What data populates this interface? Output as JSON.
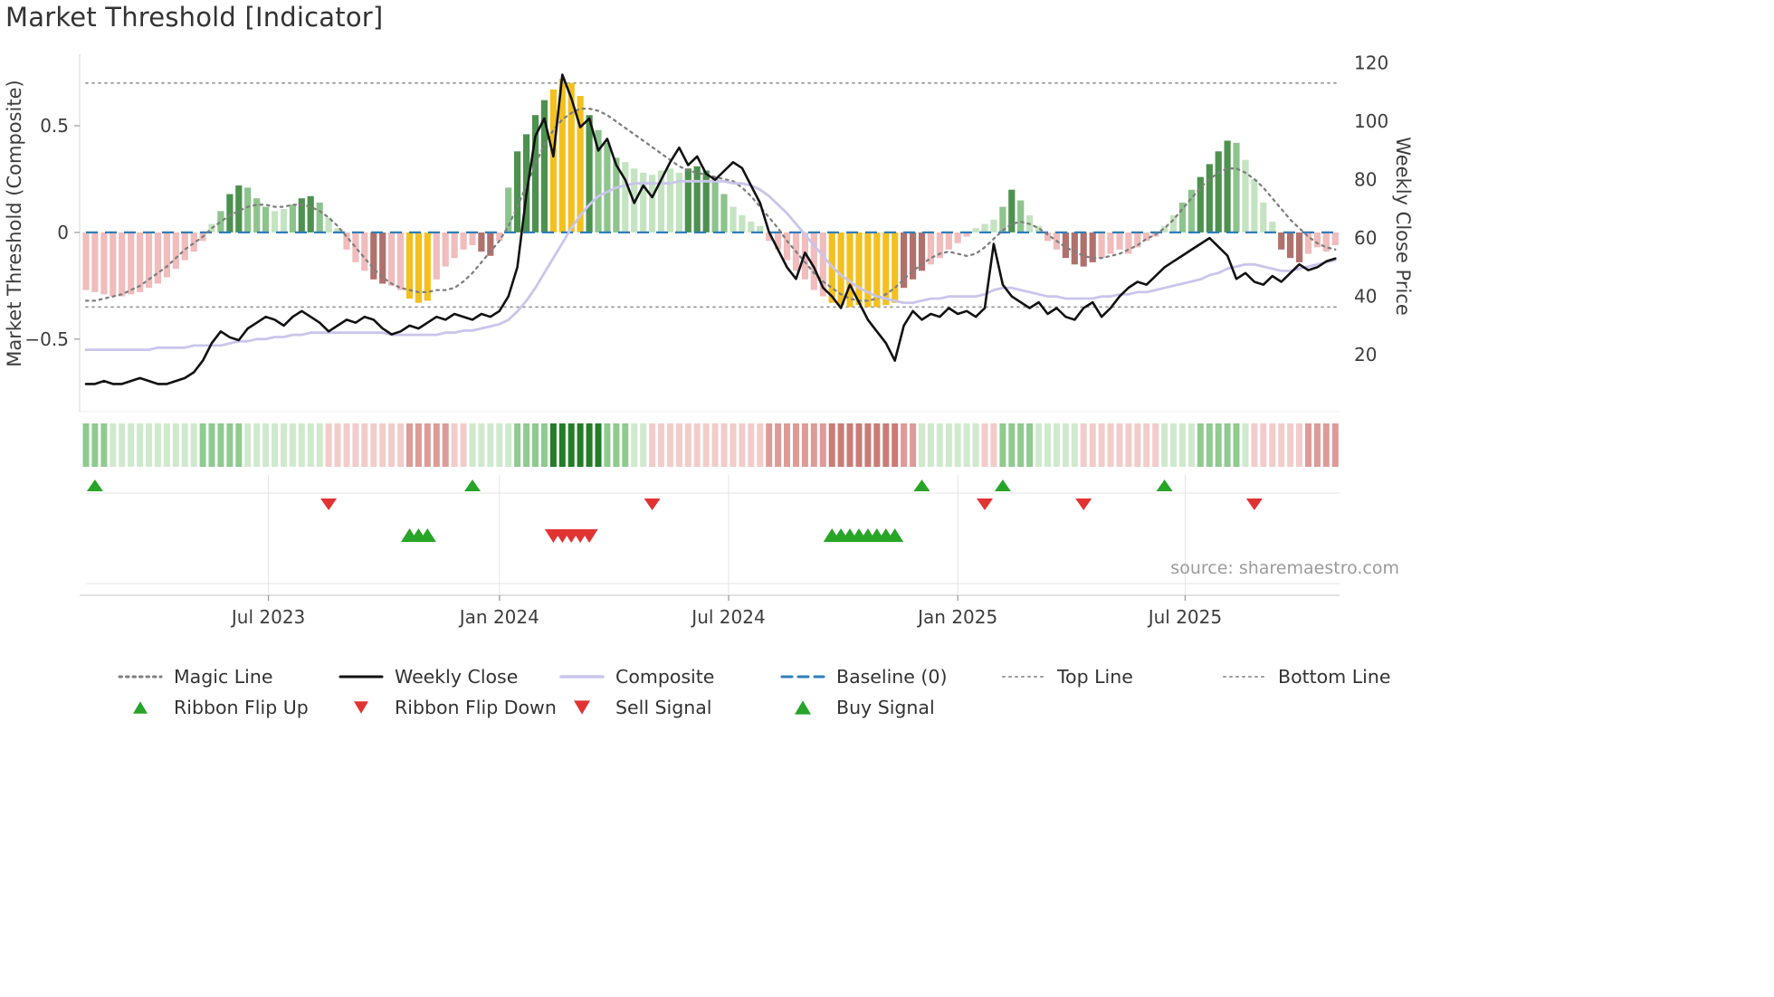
{
  "title": "Market Threshold [Indicator]",
  "source_text": "source: sharemaestro.com",
  "axes": {
    "left_label": "Market Threshold (Composite)",
    "right_label": "Weekly Close Price"
  },
  "colors": {
    "bar_palette": {
      "p": "#f0bcbc",
      "d": "#b0716d",
      "y": "#f3c01f",
      "g1": "#c4e4c1",
      "g2": "#8dc48d",
      "g3": "#4d914f"
    },
    "ribbon_palette": {
      "G1": "#cfe9cd",
      "G2": "#8fca8f",
      "G3": "#237d27",
      "R1": "#f2ccca",
      "R2": "#dd9b97",
      "R3": "#c97c76"
    },
    "lines": {
      "weekly_close": "#111111",
      "magic_line": "#7f7f7f",
      "composite": "#c9c5ec",
      "baseline": "#2e7ebb",
      "reference": "#9a9a9a"
    },
    "markers": {
      "up": "#28a428",
      "down": "#e23333"
    },
    "text": {
      "primary": "#333333",
      "ticks": "#3d3d3d",
      "source": "#9b9b9b"
    }
  },
  "legend": {
    "row1": [
      {
        "label": "Magic Line",
        "swatch": "magic"
      },
      {
        "label": "Weekly Close",
        "swatch": "close"
      },
      {
        "label": "Composite",
        "swatch": "composite"
      },
      {
        "label": "Baseline (0)",
        "swatch": "baseline"
      },
      {
        "label": "Top Line",
        "swatch": "refline"
      },
      {
        "label": "Bottom Line",
        "swatch": "refline"
      }
    ],
    "row2": [
      {
        "label": "Ribbon Flip Up",
        "swatch": "tri-up"
      },
      {
        "label": "Ribbon Flip Down",
        "swatch": "tri-down"
      },
      {
        "label": "Sell Signal",
        "swatch": "tri-down-big"
      },
      {
        "label": "Buy Signal",
        "swatch": "tri-up-big"
      }
    ]
  },
  "chart_data": {
    "type": "mixed-bar-line",
    "title": "Market Threshold [Indicator]",
    "frequency": "weekly",
    "points": 140,
    "legend_position": "bottom",
    "grid": "lower-panel-only",
    "left_axis": {
      "range": [
        -0.84,
        0.835
      ],
      "ticks": [
        {
          "value": 0.5,
          "label": "0.5"
        },
        {
          "value": 0,
          "label": "0"
        },
        {
          "value": -0.5,
          "label": "−0.5"
        }
      ]
    },
    "right_axis": {
      "range": [
        0.5,
        123
      ],
      "ticks": [
        {
          "value": 120,
          "label": "120"
        },
        {
          "value": 100,
          "label": "100"
        },
        {
          "value": 80,
          "label": "80"
        },
        {
          "value": 60,
          "label": "60"
        },
        {
          "value": 40,
          "label": "40"
        },
        {
          "value": 20,
          "label": "20"
        }
      ]
    },
    "x_ticks": [
      {
        "pos": 20.3,
        "label": "Jul 2023"
      },
      {
        "pos": 46,
        "label": "Jan 2024"
      },
      {
        "pos": 71.5,
        "label": "Jul 2024"
      },
      {
        "pos": 97,
        "label": "Jan 2025"
      },
      {
        "pos": 122.3,
        "label": "Jul 2025"
      }
    ],
    "reference_lines": {
      "baseline": 0,
      "top_line": 0.7,
      "bottom_line": -0.35
    },
    "threshold_bars": {
      "values": [
        -0.27,
        -0.28,
        -0.29,
        -0.3,
        -0.3,
        -0.29,
        -0.28,
        -0.26,
        -0.24,
        -0.21,
        -0.17,
        -0.13,
        -0.09,
        -0.04,
        0.04,
        0.1,
        0.18,
        0.22,
        0.21,
        0.16,
        0.12,
        0.1,
        0.11,
        0.13,
        0.16,
        0.17,
        0.14,
        0.07,
        0.02,
        -0.08,
        -0.14,
        -0.18,
        -0.22,
        -0.24,
        -0.25,
        -0.27,
        -0.31,
        -0.33,
        -0.32,
        -0.22,
        -0.16,
        -0.12,
        -0.08,
        -0.06,
        -0.09,
        -0.11,
        -0.04,
        0.21,
        0.38,
        0.46,
        0.55,
        0.62,
        0.67,
        0.72,
        0.7,
        0.64,
        0.55,
        0.48,
        0.42,
        0.35,
        0.33,
        0.3,
        0.28,
        0.27,
        0.29,
        0.3,
        0.28,
        0.3,
        0.31,
        0.29,
        0.25,
        0.18,
        0.12,
        0.08,
        0.05,
        0.03,
        -0.04,
        -0.08,
        -0.13,
        -0.18,
        -0.22,
        -0.27,
        -0.3,
        -0.33,
        -0.34,
        -0.35,
        -0.34,
        -0.35,
        -0.35,
        -0.34,
        -0.33,
        -0.26,
        -0.22,
        -0.18,
        -0.15,
        -0.12,
        -0.08,
        -0.05,
        -0.02,
        0.02,
        0.04,
        0.06,
        0.12,
        0.2,
        0.15,
        0.08,
        0.03,
        -0.04,
        -0.08,
        -0.12,
        -0.15,
        -0.16,
        -0.14,
        -0.12,
        -0.1,
        -0.08,
        -0.1,
        -0.07,
        -0.04,
        -0.02,
        0.03,
        0.08,
        0.14,
        0.2,
        0.26,
        0.32,
        0.38,
        0.43,
        0.42,
        0.34,
        0.25,
        0.14,
        0.05,
        -0.08,
        -0.12,
        -0.14,
        -0.1,
        -0.07,
        -0.09,
        -0.06
      ],
      "colors": [
        "p",
        "p",
        "p",
        "p",
        "p",
        "p",
        "p",
        "p",
        "p",
        "p",
        "p",
        "p",
        "p",
        "p",
        "g1",
        "g2",
        "g3",
        "g3",
        "g2",
        "g2",
        "g2",
        "g1",
        "g1",
        "g2",
        "g3",
        "g3",
        "g2",
        "g1",
        "g1",
        "p",
        "p",
        "p",
        "d",
        "d",
        "p",
        "p",
        "y",
        "y",
        "y",
        "p",
        "p",
        "p",
        "p",
        "p",
        "d",
        "d",
        "p",
        "g2",
        "g3",
        "g3",
        "g3",
        "g3",
        "y",
        "y",
        "y",
        "y",
        "g3",
        "g2",
        "g2",
        "g2",
        "g1",
        "g1",
        "g1",
        "g1",
        "g1",
        "g1",
        "g1",
        "g3",
        "g3",
        "g3",
        "g2",
        "g2",
        "g1",
        "g1",
        "g1",
        "g1",
        "p",
        "p",
        "p",
        "p",
        "p",
        "p",
        "p",
        "y",
        "y",
        "y",
        "y",
        "y",
        "y",
        "y",
        "y",
        "d",
        "d",
        "d",
        "p",
        "p",
        "p",
        "p",
        "p",
        "g1",
        "g1",
        "g1",
        "g2",
        "g3",
        "g2",
        "g1",
        "g1",
        "p",
        "p",
        "d",
        "d",
        "d",
        "d",
        "p",
        "p",
        "p",
        "p",
        "p",
        "p",
        "p",
        "g1",
        "g1",
        "g2",
        "g2",
        "g3",
        "g3",
        "g3",
        "g3",
        "g2",
        "g1",
        "g1",
        "g1",
        "g1",
        "d",
        "d",
        "d",
        "p",
        "p",
        "p",
        "p"
      ]
    },
    "series": [
      {
        "id": "magic",
        "name": "Magic Line",
        "axis": "left",
        "values": [
          -0.32,
          -0.32,
          -0.31,
          -0.3,
          -0.29,
          -0.27,
          -0.25,
          -0.22,
          -0.19,
          -0.16,
          -0.12,
          -0.08,
          -0.05,
          -0.02,
          0.02,
          0.05,
          0.08,
          0.1,
          0.12,
          0.13,
          0.13,
          0.12,
          0.12,
          0.13,
          0.13,
          0.12,
          0.1,
          0.07,
          0.03,
          -0.02,
          -0.07,
          -0.12,
          -0.17,
          -0.21,
          -0.24,
          -0.26,
          -0.27,
          -0.28,
          -0.28,
          -0.27,
          -0.27,
          -0.26,
          -0.23,
          -0.19,
          -0.14,
          -0.09,
          -0.04,
          0.03,
          0.12,
          0.22,
          0.32,
          0.41,
          0.48,
          0.53,
          0.56,
          0.58,
          0.58,
          0.57,
          0.55,
          0.52,
          0.49,
          0.46,
          0.43,
          0.4,
          0.37,
          0.34,
          0.31,
          0.29,
          0.28,
          0.27,
          0.26,
          0.25,
          0.24,
          0.21,
          0.17,
          0.12,
          0.07,
          0.02,
          -0.04,
          -0.09,
          -0.14,
          -0.19,
          -0.23,
          -0.26,
          -0.29,
          -0.31,
          -0.32,
          -0.32,
          -0.31,
          -0.29,
          -0.26,
          -0.22,
          -0.18,
          -0.15,
          -0.12,
          -0.1,
          -0.09,
          -0.1,
          -0.11,
          -0.1,
          -0.07,
          -0.03,
          0.01,
          0.04,
          0.05,
          0.04,
          0.02,
          -0.01,
          -0.04,
          -0.07,
          -0.09,
          -0.11,
          -0.12,
          -0.12,
          -0.11,
          -0.1,
          -0.08,
          -0.06,
          -0.03,
          -0.01,
          0.02,
          0.06,
          0.11,
          0.16,
          0.21,
          0.25,
          0.28,
          0.3,
          0.3,
          0.28,
          0.25,
          0.21,
          0.16,
          0.11,
          0.06,
          0.02,
          -0.02,
          -0.05,
          -0.07,
          -0.08
        ]
      },
      {
        "id": "composite",
        "name": "Composite",
        "axis": "left",
        "values": [
          -0.55,
          -0.55,
          -0.55,
          -0.55,
          -0.55,
          -0.55,
          -0.55,
          -0.55,
          -0.54,
          -0.54,
          -0.54,
          -0.54,
          -0.53,
          -0.53,
          -0.53,
          -0.53,
          -0.52,
          -0.51,
          -0.51,
          -0.5,
          -0.5,
          -0.49,
          -0.49,
          -0.48,
          -0.48,
          -0.47,
          -0.47,
          -0.47,
          -0.47,
          -0.47,
          -0.47,
          -0.47,
          -0.47,
          -0.47,
          -0.48,
          -0.48,
          -0.48,
          -0.48,
          -0.48,
          -0.48,
          -0.47,
          -0.47,
          -0.46,
          -0.46,
          -0.45,
          -0.44,
          -0.43,
          -0.41,
          -0.37,
          -0.32,
          -0.26,
          -0.19,
          -0.12,
          -0.05,
          0.02,
          0.08,
          0.13,
          0.17,
          0.19,
          0.21,
          0.22,
          0.23,
          0.23,
          0.23,
          0.23,
          0.23,
          0.24,
          0.24,
          0.24,
          0.24,
          0.24,
          0.24,
          0.23,
          0.23,
          0.22,
          0.2,
          0.17,
          0.13,
          0.09,
          0.04,
          -0.01,
          -0.06,
          -0.11,
          -0.16,
          -0.2,
          -0.23,
          -0.26,
          -0.28,
          -0.3,
          -0.31,
          -0.32,
          -0.33,
          -0.33,
          -0.32,
          -0.31,
          -0.31,
          -0.3,
          -0.3,
          -0.3,
          -0.3,
          -0.29,
          -0.27,
          -0.26,
          -0.26,
          -0.27,
          -0.28,
          -0.29,
          -0.3,
          -0.3,
          -0.31,
          -0.31,
          -0.31,
          -0.31,
          -0.3,
          -0.3,
          -0.29,
          -0.29,
          -0.28,
          -0.28,
          -0.27,
          -0.26,
          -0.25,
          -0.24,
          -0.23,
          -0.22,
          -0.2,
          -0.19,
          -0.17,
          -0.16,
          -0.15,
          -0.15,
          -0.16,
          -0.17,
          -0.18,
          -0.18,
          -0.17,
          -0.16,
          -0.15,
          -0.14,
          -0.13
        ]
      },
      {
        "id": "close",
        "name": "Weekly Close",
        "axis": "right",
        "values": [
          10,
          10,
          11,
          10,
          10,
          11,
          12,
          11,
          10,
          10,
          11,
          12,
          14,
          18,
          24,
          28,
          26,
          25,
          29,
          31,
          33,
          32,
          30,
          33,
          35,
          33,
          31,
          28,
          30,
          32,
          31,
          33,
          32,
          29,
          27,
          28,
          30,
          29,
          31,
          33,
          32,
          34,
          33,
          32,
          34,
          33,
          35,
          40,
          50,
          75,
          95,
          101,
          88,
          116,
          108,
          98,
          101,
          90,
          94,
          85,
          80,
          72,
          78,
          74,
          80,
          86,
          91,
          85,
          88,
          82,
          80,
          83,
          86,
          84,
          78,
          72,
          62,
          56,
          50,
          46,
          55,
          50,
          43,
          40,
          36,
          44,
          38,
          32,
          28,
          24,
          18,
          30,
          35,
          32,
          34,
          33,
          36,
          34,
          35,
          33,
          36,
          58,
          44,
          40,
          38,
          36,
          38,
          34,
          36,
          33,
          32,
          36,
          38,
          33,
          36,
          40,
          43,
          45,
          44,
          47,
          50,
          52,
          54,
          56,
          58,
          60,
          57,
          54,
          46,
          48,
          45,
          44,
          47,
          45,
          48,
          51,
          49,
          50,
          52,
          53
        ]
      }
    ],
    "ribbon": {
      "colors": [
        "G2",
        "G2",
        "G2",
        "G1",
        "G1",
        "G1",
        "G1",
        "G1",
        "G1",
        "G1",
        "G1",
        "G1",
        "G1",
        "G2",
        "G2",
        "G2",
        "G2",
        "G2",
        "G1",
        "G1",
        "G1",
        "G1",
        "G1",
        "G1",
        "G1",
        "G1",
        "G1",
        "R1",
        "R1",
        "R1",
        "R1",
        "R1",
        "R1",
        "R1",
        "R1",
        "R1",
        "R2",
        "R2",
        "R2",
        "R2",
        "R2",
        "R1",
        "R1",
        "G1",
        "G1",
        "G1",
        "G1",
        "G1",
        "G2",
        "G2",
        "G2",
        "G2",
        "G3",
        "G3",
        "G3",
        "G3",
        "G3",
        "G3",
        "G2",
        "G2",
        "G2",
        "G1",
        "G1",
        "R1",
        "R1",
        "R1",
        "R1",
        "R1",
        "R1",
        "R1",
        "R1",
        "R1",
        "R1",
        "R1",
        "R1",
        "R1",
        "R2",
        "R2",
        "R2",
        "R2",
        "R2",
        "R2",
        "R2",
        "R3",
        "R3",
        "R3",
        "R3",
        "R3",
        "R3",
        "R3",
        "R3",
        "R2",
        "R2",
        "G1",
        "G1",
        "G1",
        "G1",
        "G1",
        "G1",
        "G1",
        "R1",
        "R1",
        "G2",
        "G2",
        "G2",
        "G2",
        "G1",
        "G1",
        "G1",
        "G1",
        "G1",
        "R1",
        "R1",
        "R1",
        "R1",
        "R1",
        "R1",
        "R1",
        "R1",
        "R1",
        "G1",
        "G1",
        "G1",
        "G1",
        "G2",
        "G2",
        "G2",
        "G2",
        "G2",
        "G1",
        "R1",
        "R1",
        "R1",
        "R1",
        "R1",
        "R1",
        "R2",
        "R2",
        "R2",
        "R2"
      ]
    },
    "markers": {
      "ribbon_flip_up": [
        1,
        43,
        93,
        102,
        120
      ],
      "ribbon_flip_down": [
        27,
        63,
        100,
        111,
        130
      ],
      "buy_signals": [
        36,
        37,
        38,
        83,
        84,
        85,
        86,
        87,
        88,
        89,
        90
      ],
      "sell_signals": [
        52,
        53,
        54,
        55,
        56
      ]
    }
  }
}
